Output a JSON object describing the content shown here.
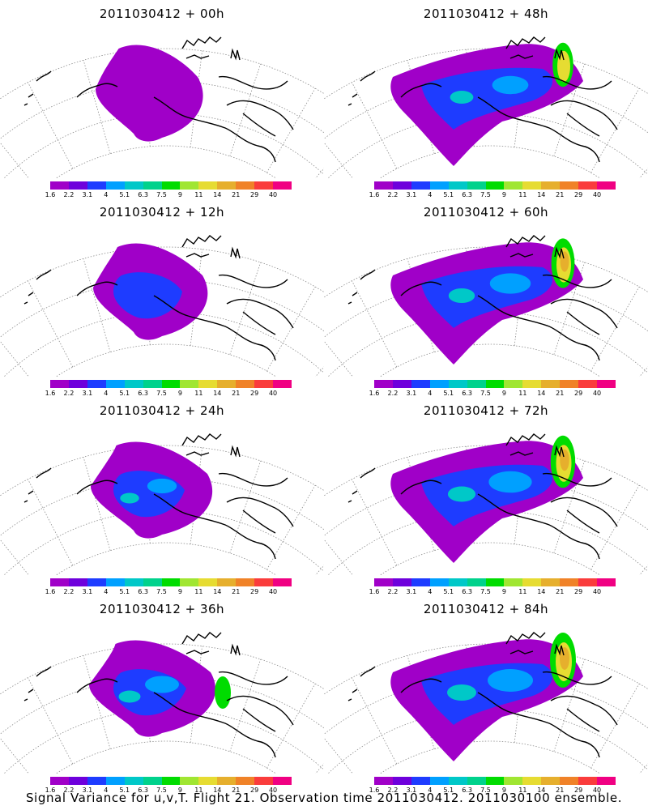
{
  "panels": [
    {
      "title": "2011030412 + 00h"
    },
    {
      "title": "2011030412 + 48h"
    },
    {
      "title": "2011030412 + 12h"
    },
    {
      "title": "2011030412 + 60h"
    },
    {
      "title": "2011030412 + 24h"
    },
    {
      "title": "2011030412 + 72h"
    },
    {
      "title": "2011030412 + 36h"
    },
    {
      "title": "2011030412 + 84h"
    }
  ],
  "colorbar": {
    "labels": [
      "1.6",
      "2.2",
      "3.1",
      "4",
      "5.1",
      "6.3",
      "7.5",
      "9",
      "11",
      "14",
      "21",
      "29",
      "40"
    ],
    "colors": [
      "#a000c8",
      "#6e00dc",
      "#1e3cff",
      "#00a0ff",
      "#00c8c8",
      "#00d28c",
      "#00dc00",
      "#a0e632",
      "#e6dc32",
      "#e6af2d",
      "#f08228",
      "#fa3c3c",
      "#f00082"
    ]
  },
  "footer": "Signal Variance for u,v,T. Flight 21. Observation time 2011030412. 2011030100 ensemble.",
  "colors": {
    "background": "#ffffff",
    "coastline": "#000000",
    "grid": "#8c8c8c"
  }
}
